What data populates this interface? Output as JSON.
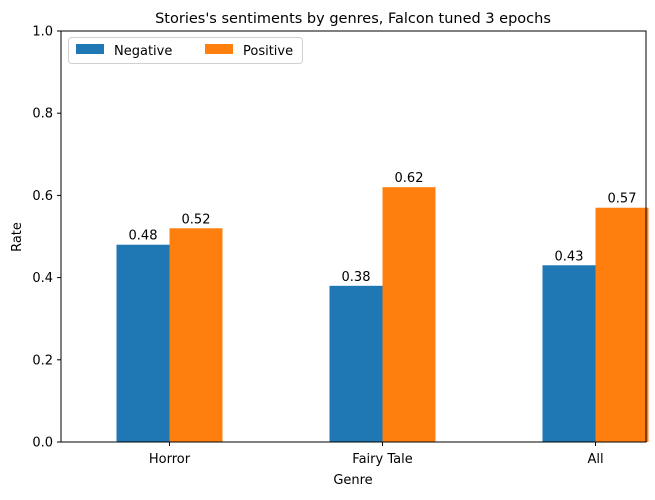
{
  "chart_data": {
    "type": "bar",
    "title": "Stories's sentiments by genres, Falcon tuned 3 epochs",
    "xlabel": "Genre",
    "ylabel": "Rate",
    "categories": [
      "Horror",
      "Fairy Tale",
      "All"
    ],
    "series": [
      {
        "name": "Negative",
        "values": [
          0.48,
          0.38,
          0.43
        ],
        "color": "#1f77b4"
      },
      {
        "name": "Positive",
        "values": [
          0.52,
          0.62,
          0.57
        ],
        "color": "#ff7f0e"
      }
    ],
    "data_labels": [
      [
        "0.48",
        "0.38",
        "0.43"
      ],
      [
        "0.52",
        "0.62",
        "0.57"
      ]
    ],
    "ylim": [
      0,
      1.0
    ],
    "yticks": [
      "0.0",
      "0.2",
      "0.4",
      "0.6",
      "0.8",
      "1.0"
    ],
    "grid": false,
    "legend_position": "top-left"
  }
}
